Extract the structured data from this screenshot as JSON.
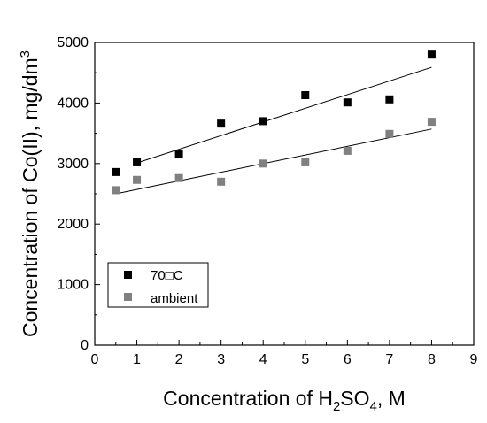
{
  "chart_data": {
    "type": "scatter",
    "xlabel": "Concentration of H2SO4, M",
    "ylabel": "Concentration of Co(II), mg/dm3",
    "xlim": [
      0,
      9
    ],
    "ylim": [
      0,
      5000
    ],
    "x_ticks": [
      0,
      1,
      2,
      3,
      4,
      5,
      6,
      7,
      8,
      9
    ],
    "y_ticks": [
      0,
      1000,
      2000,
      3000,
      4000,
      5000
    ],
    "legend_position": "lower-left",
    "grid": false,
    "series": [
      {
        "name": "70□C",
        "color": "#000000",
        "marker": "square",
        "x": [
          0.5,
          1,
          2,
          3,
          4,
          5,
          6,
          7,
          8
        ],
        "y": [
          2860,
          3020,
          3150,
          3660,
          3700,
          4130,
          4010,
          4060,
          4800
        ],
        "trendline": {
          "x": [
            1,
            8
          ],
          "y": [
            3010,
            4590
          ]
        }
      },
      {
        "name": "ambient",
        "color": "#808080",
        "marker": "square",
        "x": [
          0.5,
          1,
          2,
          3,
          4,
          5,
          6,
          7,
          8
        ],
        "y": [
          2560,
          2730,
          2760,
          2700,
          3000,
          3020,
          3210,
          3490,
          3690
        ],
        "trendline": {
          "x": [
            0.5,
            8
          ],
          "y": [
            2500,
            3570
          ]
        }
      }
    ]
  }
}
